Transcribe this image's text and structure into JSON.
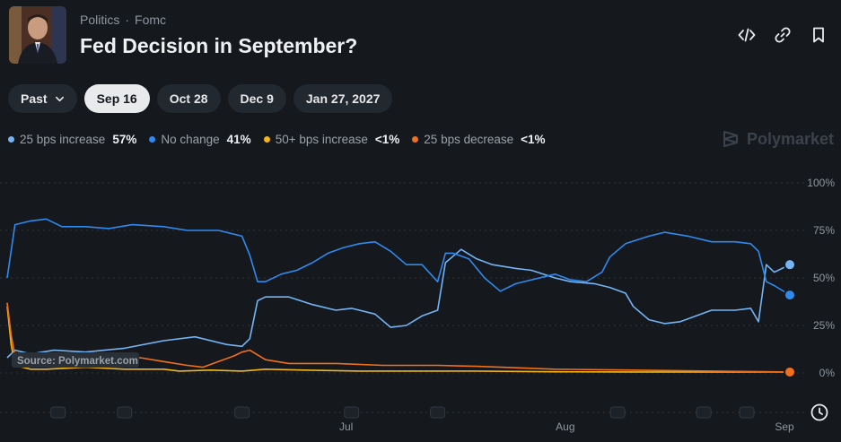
{
  "breadcrumb": {
    "category": "Politics",
    "subcategory": "Fomc"
  },
  "title": "Fed Decision in September?",
  "tabs": [
    {
      "label": "Past",
      "active": false,
      "dropdown": true
    },
    {
      "label": "Sep 16",
      "active": true
    },
    {
      "label": "Oct 28",
      "active": false
    },
    {
      "label": "Dec 9",
      "active": false
    },
    {
      "label": "Jan 27, 2027",
      "active": false
    }
  ],
  "legend": [
    {
      "label": "25 bps increase",
      "value": "57%",
      "color": "#74b4f5"
    },
    {
      "label": "No change",
      "value": "41%",
      "color": "#2f8af0"
    },
    {
      "label": "50+ bps increase",
      "value": "<1%",
      "color": "#f2b51c"
    },
    {
      "label": "25 bps decrease",
      "value": "<1%",
      "color": "#f2701c"
    }
  ],
  "brand": "Polymarket",
  "source": "Source: Polymarket.com",
  "icons": [
    "embed-icon",
    "link-icon",
    "bookmark-icon",
    "clock-icon"
  ],
  "chart_data": {
    "type": "line",
    "ylim": [
      0,
      100
    ],
    "y_ticks": [
      "100%",
      "75%",
      "50%",
      "25%",
      "0%"
    ],
    "x_ticks": [
      {
        "label": "Jul",
        "x": 0.44
      },
      {
        "label": "Aug",
        "x": 0.72
      },
      {
        "label": "Sep",
        "x": 1.0
      }
    ],
    "series": [
      {
        "name": "25 bps increase",
        "color": "#74b4f5",
        "points": [
          [
            0,
            8
          ],
          [
            0.01,
            12
          ],
          [
            0.03,
            10
          ],
          [
            0.06,
            12
          ],
          [
            0.1,
            11
          ],
          [
            0.15,
            13
          ],
          [
            0.2,
            17
          ],
          [
            0.24,
            19
          ],
          [
            0.28,
            15
          ],
          [
            0.3,
            14
          ],
          [
            0.31,
            18
          ],
          [
            0.32,
            38
          ],
          [
            0.33,
            40
          ],
          [
            0.36,
            40
          ],
          [
            0.39,
            36
          ],
          [
            0.42,
            33
          ],
          [
            0.44,
            34
          ],
          [
            0.47,
            31
          ],
          [
            0.49,
            24
          ],
          [
            0.51,
            25
          ],
          [
            0.53,
            30
          ],
          [
            0.55,
            33
          ],
          [
            0.56,
            58
          ],
          [
            0.58,
            65
          ],
          [
            0.6,
            60
          ],
          [
            0.62,
            57
          ],
          [
            0.65,
            55
          ],
          [
            0.67,
            54
          ],
          [
            0.7,
            50
          ],
          [
            0.72,
            48
          ],
          [
            0.75,
            47
          ],
          [
            0.77,
            45
          ],
          [
            0.79,
            42
          ],
          [
            0.8,
            35
          ],
          [
            0.82,
            28
          ],
          [
            0.84,
            26
          ],
          [
            0.86,
            27
          ],
          [
            0.88,
            30
          ],
          [
            0.9,
            33
          ],
          [
            0.93,
            33
          ],
          [
            0.95,
            34
          ],
          [
            0.96,
            27
          ],
          [
            0.97,
            57
          ],
          [
            0.98,
            53
          ],
          [
            1.0,
            57
          ]
        ]
      },
      {
        "name": "No change",
        "color": "#2f8af0",
        "points": [
          [
            0,
            50
          ],
          [
            0.01,
            78
          ],
          [
            0.03,
            80
          ],
          [
            0.05,
            81
          ],
          [
            0.07,
            77
          ],
          [
            0.1,
            77
          ],
          [
            0.13,
            76
          ],
          [
            0.16,
            78
          ],
          [
            0.2,
            77
          ],
          [
            0.23,
            75
          ],
          [
            0.27,
            75
          ],
          [
            0.3,
            72
          ],
          [
            0.31,
            62
          ],
          [
            0.32,
            48
          ],
          [
            0.33,
            48
          ],
          [
            0.35,
            52
          ],
          [
            0.37,
            54
          ],
          [
            0.39,
            58
          ],
          [
            0.41,
            63
          ],
          [
            0.43,
            66
          ],
          [
            0.45,
            68
          ],
          [
            0.47,
            69
          ],
          [
            0.49,
            64
          ],
          [
            0.51,
            57
          ],
          [
            0.53,
            57
          ],
          [
            0.55,
            48
          ],
          [
            0.56,
            63
          ],
          [
            0.57,
            63
          ],
          [
            0.59,
            60
          ],
          [
            0.61,
            50
          ],
          [
            0.63,
            43
          ],
          [
            0.65,
            47
          ],
          [
            0.67,
            49
          ],
          [
            0.7,
            52
          ],
          [
            0.72,
            49
          ],
          [
            0.74,
            48
          ],
          [
            0.76,
            53
          ],
          [
            0.77,
            61
          ],
          [
            0.79,
            68
          ],
          [
            0.82,
            72
          ],
          [
            0.84,
            74
          ],
          [
            0.87,
            72
          ],
          [
            0.9,
            69
          ],
          [
            0.93,
            69
          ],
          [
            0.95,
            68
          ],
          [
            0.96,
            64
          ],
          [
            0.97,
            48
          ],
          [
            0.98,
            46
          ],
          [
            1.0,
            41
          ]
        ]
      },
      {
        "name": "50+ bps increase",
        "color": "#f2b51c",
        "points": [
          [
            0,
            35
          ],
          [
            0.005,
            15
          ],
          [
            0.01,
            4
          ],
          [
            0.03,
            2
          ],
          [
            0.05,
            2
          ],
          [
            0.1,
            3
          ],
          [
            0.15,
            2
          ],
          [
            0.2,
            2
          ],
          [
            0.22,
            1
          ],
          [
            0.26,
            1.5
          ],
          [
            0.3,
            1
          ],
          [
            0.33,
            2
          ],
          [
            0.38,
            1.5
          ],
          [
            0.45,
            1
          ],
          [
            0.5,
            1
          ],
          [
            0.55,
            1
          ],
          [
            0.6,
            1
          ],
          [
            0.7,
            0.6
          ],
          [
            0.8,
            0.5
          ],
          [
            0.9,
            0.5
          ],
          [
            1.0,
            0.5
          ]
        ]
      },
      {
        "name": "25 bps decrease",
        "color": "#f2701c",
        "points": [
          [
            0,
            37
          ],
          [
            0.005,
            20
          ],
          [
            0.01,
            9
          ],
          [
            0.03,
            7
          ],
          [
            0.06,
            7
          ],
          [
            0.09,
            8
          ],
          [
            0.13,
            9
          ],
          [
            0.17,
            8
          ],
          [
            0.2,
            6
          ],
          [
            0.23,
            4
          ],
          [
            0.25,
            3
          ],
          [
            0.27,
            6
          ],
          [
            0.29,
            9
          ],
          [
            0.3,
            11
          ],
          [
            0.31,
            12
          ],
          [
            0.33,
            7
          ],
          [
            0.36,
            5
          ],
          [
            0.42,
            5
          ],
          [
            0.48,
            4
          ],
          [
            0.55,
            4
          ],
          [
            0.6,
            3.5
          ],
          [
            0.7,
            2
          ],
          [
            0.8,
            1.5
          ],
          [
            0.9,
            1
          ],
          [
            1.0,
            0.5
          ]
        ]
      }
    ]
  }
}
